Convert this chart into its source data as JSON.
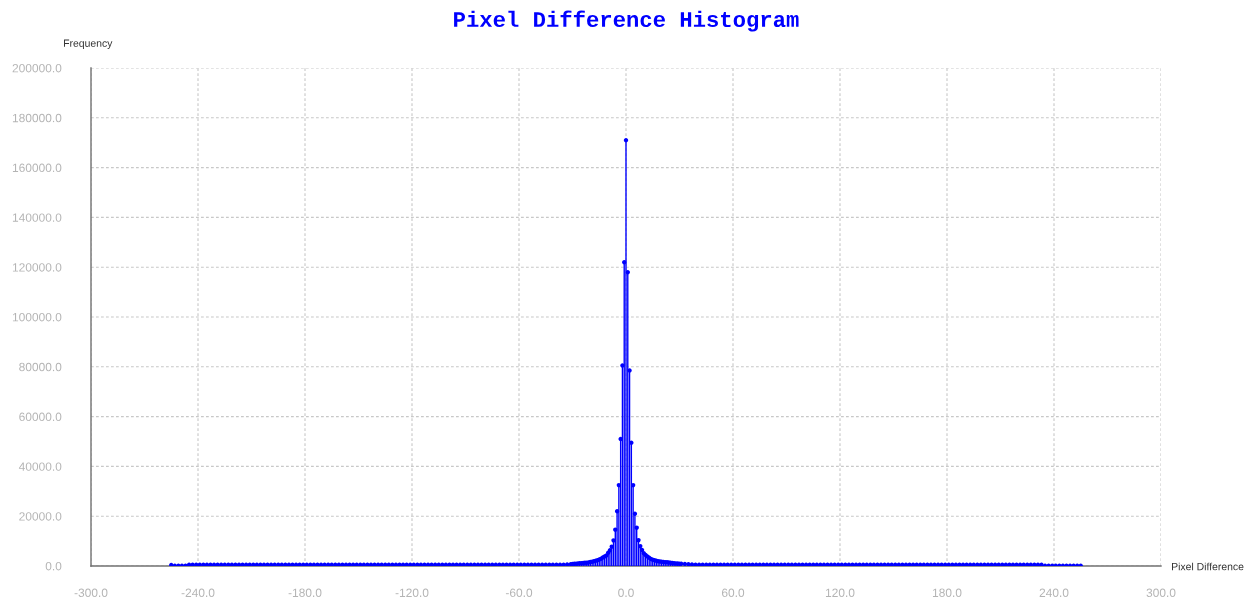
{
  "chart_data": {
    "type": "lollipop",
    "title": "Pixel Difference Histogram",
    "xlabel": "Pixel Difference",
    "ylabel": "Frequency",
    "x": [
      -255,
      -253,
      -251,
      -249,
      -247,
      -245,
      -243,
      -241,
      -239,
      -237,
      -235,
      -233,
      -231,
      -229,
      -227,
      -225,
      -223,
      -221,
      -219,
      -217,
      -215,
      -213,
      -211,
      -209,
      -207,
      -205,
      -203,
      -201,
      -199,
      -197,
      -195,
      -193,
      -191,
      -189,
      -187,
      -185,
      -183,
      -181,
      -179,
      -177,
      -175,
      -173,
      -171,
      -169,
      -167,
      -165,
      -163,
      -161,
      -159,
      -157,
      -155,
      -153,
      -151,
      -149,
      -147,
      -145,
      -143,
      -141,
      -139,
      -137,
      -135,
      -133,
      -131,
      -129,
      -127,
      -125,
      -123,
      -121,
      -119,
      -117,
      -115,
      -113,
      -111,
      -109,
      -107,
      -105,
      -103,
      -101,
      -99,
      -97,
      -95,
      -93,
      -91,
      -89,
      -87,
      -85,
      -83,
      -81,
      -79,
      -77,
      -75,
      -73,
      -71,
      -69,
      -67,
      -65,
      -63,
      -61,
      -59,
      -57,
      -55,
      -53,
      -51,
      -49,
      -47,
      -45,
      -43,
      -41,
      -39,
      -37,
      -35,
      -33,
      -31,
      -30,
      -29,
      -28,
      -27,
      -26,
      -25,
      -24,
      -23,
      -22,
      -21,
      -20,
      -19,
      -18,
      -17,
      -16,
      -15,
      -14,
      -13,
      -12,
      -11,
      -10,
      -9,
      -8,
      -7,
      -6,
      -5,
      -4,
      -3,
      -2,
      -1,
      0,
      1,
      2,
      3,
      4,
      5,
      6,
      7,
      8,
      9,
      10,
      11,
      12,
      13,
      14,
      15,
      16,
      17,
      18,
      19,
      20,
      21,
      22,
      23,
      24,
      25,
      26,
      27,
      28,
      29,
      30,
      31,
      33,
      35,
      37,
      39,
      41,
      43,
      45,
      47,
      49,
      51,
      53,
      55,
      57,
      59,
      61,
      63,
      65,
      67,
      69,
      71,
      73,
      75,
      77,
      79,
      81,
      83,
      85,
      87,
      89,
      91,
      93,
      95,
      97,
      99,
      101,
      103,
      105,
      107,
      109,
      111,
      113,
      115,
      117,
      119,
      121,
      123,
      125,
      127,
      129,
      131,
      133,
      135,
      137,
      139,
      141,
      143,
      145,
      147,
      149,
      151,
      153,
      155,
      157,
      159,
      161,
      163,
      165,
      167,
      169,
      171,
      173,
      175,
      177,
      179,
      181,
      183,
      185,
      187,
      189,
      191,
      193,
      195,
      197,
      199,
      201,
      203,
      205,
      207,
      209,
      211,
      213,
      215,
      217,
      219,
      221,
      223,
      225,
      227,
      229,
      231,
      233,
      235,
      237,
      239,
      241,
      243,
      245,
      247,
      249,
      251,
      253,
      255
    ],
    "values": [
      400,
      100,
      100,
      100,
      100,
      500,
      500,
      500,
      500,
      500,
      500,
      500,
      500,
      500,
      500,
      500,
      500,
      500,
      500,
      500,
      500,
      500,
      500,
      500,
      500,
      500,
      500,
      500,
      500,
      500,
      500,
      500,
      500,
      500,
      500,
      500,
      500,
      500,
      500,
      500,
      500,
      500,
      500,
      500,
      500,
      500,
      500,
      500,
      500,
      500,
      500,
      500,
      500,
      500,
      500,
      500,
      500,
      500,
      500,
      500,
      500,
      500,
      500,
      500,
      500,
      500,
      500,
      500,
      500,
      500,
      500,
      500,
      500,
      500,
      500,
      500,
      500,
      500,
      500,
      500,
      500,
      500,
      500,
      500,
      500,
      500,
      500,
      500,
      500,
      500,
      500,
      500,
      500,
      500,
      500,
      500,
      500,
      500,
      500,
      500,
      500,
      500,
      500,
      500,
      500,
      500,
      500,
      500,
      500,
      500,
      500,
      600,
      700,
      800,
      900,
      900,
      1000,
      1100,
      1100,
      1200,
      1300,
      1300,
      1400,
      1600,
      1700,
      1900,
      2100,
      2300,
      2600,
      2900,
      3400,
      3800,
      4200,
      5300,
      6300,
      7800,
      10300,
      14600,
      22000,
      32500,
      51000,
      80500,
      122000,
      171000,
      118000,
      78500,
      49500,
      32500,
      21000,
      15400,
      10400,
      8000,
      6400,
      5100,
      4400,
      3800,
      3300,
      2800,
      2500,
      2300,
      2100,
      1900,
      1800,
      1700,
      1600,
      1500,
      1500,
      1400,
      1300,
      1200,
      1100,
      1000,
      1000,
      900,
      900,
      800,
      700,
      600,
      500,
      500,
      500,
      500,
      500,
      500,
      500,
      500,
      500,
      500,
      500,
      500,
      500,
      500,
      500,
      500,
      500,
      500,
      500,
      500,
      500,
      500,
      500,
      500,
      500,
      500,
      500,
      500,
      500,
      500,
      500,
      500,
      500,
      500,
      500,
      500,
      500,
      500,
      500,
      500,
      500,
      500,
      500,
      500,
      500,
      500,
      500,
      500,
      500,
      500,
      500,
      500,
      500,
      500,
      500,
      500,
      500,
      500,
      500,
      500,
      500,
      500,
      500,
      500,
      500,
      500,
      500,
      500,
      500,
      500,
      500,
      500,
      500,
      500,
      500,
      500,
      500,
      500,
      500,
      500,
      500,
      500,
      500,
      500,
      500,
      500,
      500,
      500,
      500,
      500,
      500,
      500,
      500,
      500,
      500,
      500,
      500,
      500,
      100,
      100,
      100,
      100,
      100,
      100,
      100,
      100,
      100,
      100,
      100
    ],
    "color": "#0000ff",
    "marker": "circle",
    "xlim": [
      -300,
      300
    ],
    "xticks": [
      {
        "value": -300,
        "label": "-300.0"
      },
      {
        "value": -240,
        "label": "-240.0"
      },
      {
        "value": -180,
        "label": "-180.0"
      },
      {
        "value": -120,
        "label": "-120.0"
      },
      {
        "value": -60,
        "label": "-60.0"
      },
      {
        "value": 0,
        "label": "0.0"
      },
      {
        "value": 60,
        "label": "60.0"
      },
      {
        "value": 120,
        "label": "120.0"
      },
      {
        "value": 180,
        "label": "180.0"
      },
      {
        "value": 240,
        "label": "240.0"
      },
      {
        "value": 300,
        "label": "300.0"
      }
    ],
    "ylim": [
      0,
      200000
    ],
    "yticks": [
      {
        "value": 0,
        "label": "0.0"
      },
      {
        "value": 20000,
        "label": "20000.0"
      },
      {
        "value": 40000,
        "label": "40000.0"
      },
      {
        "value": 60000,
        "label": "60000.0"
      },
      {
        "value": 80000,
        "label": "80000.0"
      },
      {
        "value": 100000,
        "label": "100000.0"
      },
      {
        "value": 120000,
        "label": "120000.0"
      },
      {
        "value": 140000,
        "label": "140000.0"
      },
      {
        "value": 160000,
        "label": "160000.0"
      },
      {
        "value": 180000,
        "label": "180000.0"
      },
      {
        "value": 200000,
        "label": "200000.0"
      }
    ],
    "grid": true
  }
}
